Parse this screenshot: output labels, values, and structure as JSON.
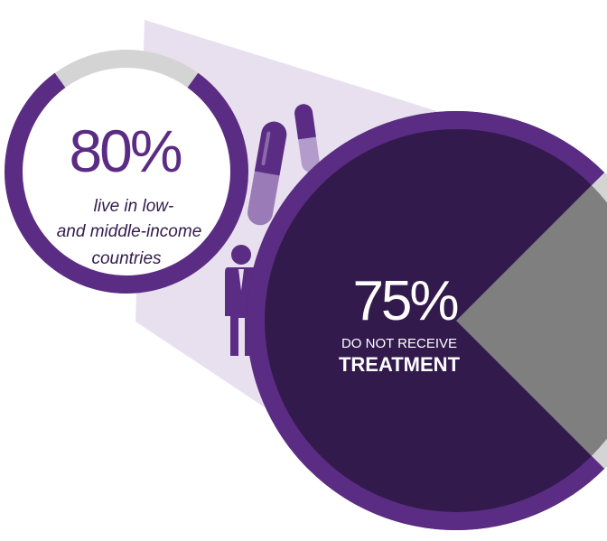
{
  "left_stat": {
    "percent": "80%",
    "caption_lines": [
      "live in low-",
      "and middle-income",
      "countries"
    ],
    "fraction": 0.8
  },
  "right_stat": {
    "percent": "75%",
    "caption_line1": "DO NOT RECEIVE",
    "caption_line2": "TREATMENT",
    "fraction": 0.75
  },
  "icons": [
    "pill-icon",
    "pill-icon",
    "man-icon",
    "woman-icon"
  ],
  "colors": {
    "purple": "#5b2c83",
    "dark_purple": "#331a4d",
    "light_lavender": "#e8e0ef",
    "gray": "#7f7f7f",
    "light_gray": "#d4d4d4",
    "white": "#ffffff"
  }
}
